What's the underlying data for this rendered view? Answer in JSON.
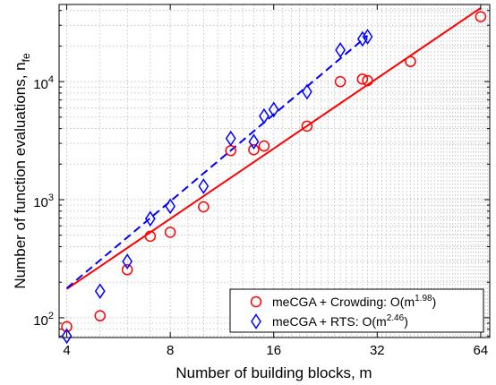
{
  "chart_data": {
    "type": "scatter",
    "xlabel": "Number of building blocks, m",
    "ylabel": "Number of function evaluations, n",
    "ylabel_sub": "fe",
    "x_scale": "log2",
    "y_scale": "log10",
    "xlim": [
      3.8,
      68
    ],
    "ylim": [
      68,
      45000
    ],
    "x_ticks": [
      4,
      8,
      16,
      32,
      64
    ],
    "x_tick_labels": [
      "4",
      "8",
      "16",
      "32",
      "64"
    ],
    "y_ticks": [
      100,
      1000,
      10000
    ],
    "y_tick_labels": [
      {
        "base": "10",
        "exp": "2"
      },
      {
        "base": "10",
        "exp": "3"
      },
      {
        "base": "10",
        "exp": "4"
      }
    ],
    "grid": true,
    "legend_position": "bottom-right",
    "series": [
      {
        "name": "meCGA + Crowding: O(m",
        "name_exp": "1.98",
        "name_suffix": ")",
        "color": "#ff0000",
        "marker": "circle",
        "x": [
          4,
          5,
          6,
          7,
          8,
          10,
          12,
          14,
          15,
          20,
          25,
          29,
          30,
          40,
          64
        ],
        "y": [
          84,
          104,
          255,
          490,
          530,
          870,
          2600,
          2650,
          2850,
          4200,
          10000,
          10500,
          10200,
          14800,
          35500
        ],
        "fit": {
          "line_style": "solid",
          "x": [
            4,
            64
          ],
          "y": [
            175,
            42000
          ]
        }
      },
      {
        "name": "meCGA + RTS: O(m",
        "name_exp": "2.46",
        "name_suffix": ")",
        "color": "#0000ff",
        "marker": "diamond",
        "x": [
          4,
          5,
          6,
          7,
          8,
          10,
          12,
          14,
          15,
          16,
          20,
          25,
          29,
          30
        ],
        "y": [
          70,
          168,
          300,
          690,
          880,
          1300,
          3300,
          3100,
          5100,
          5800,
          8200,
          18500,
          23000,
          24000
        ],
        "fit": {
          "line_style": "dashed",
          "x": [
            4,
            30
          ],
          "y": [
            178,
            24500
          ]
        }
      }
    ]
  }
}
